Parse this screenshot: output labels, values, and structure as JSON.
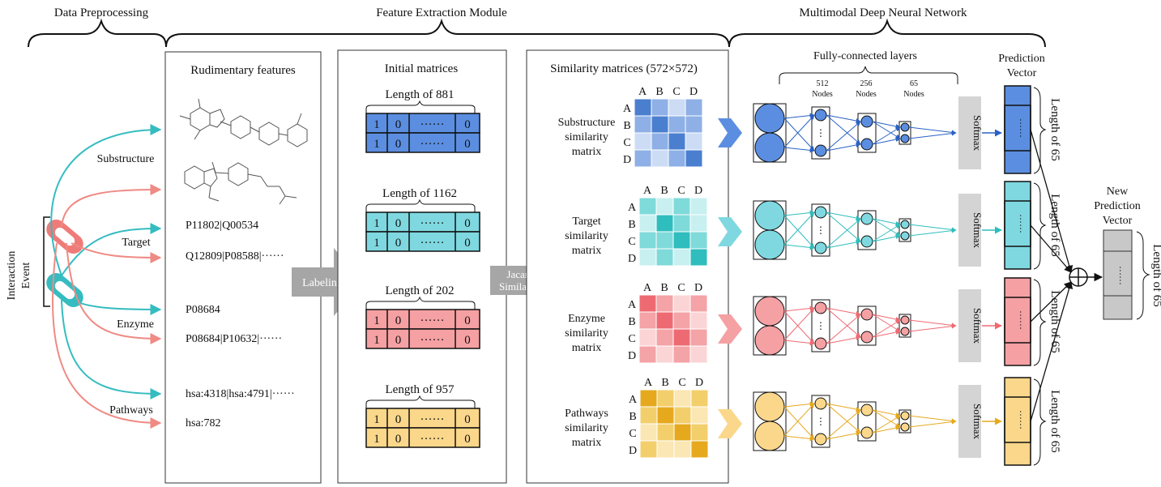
{
  "sections": {
    "data_preprocessing": "Data Preprocessing",
    "feature_extraction": "Feature Extraction Module",
    "multimodal_dnn": "Multimodal Deep Neural Network"
  },
  "interaction_event": [
    "Interaction",
    "Event"
  ],
  "feature_types": [
    "Substructure",
    "Target",
    "Enzyme",
    "Pathways"
  ],
  "rudimentary": {
    "title": "Rudimentary features",
    "target_lines": [
      "P11802|Q00534",
      "Q12809|P08588|······"
    ],
    "enzyme_lines": [
      "P08684",
      "P08684|P10632|······"
    ],
    "pathway_lines": [
      "hsa:4318|hsa:4791|······",
      "hsa:782"
    ]
  },
  "arrows": {
    "labeling": "Labeling",
    "jacard": [
      "Jacard",
      "Similarity"
    ]
  },
  "initial_matrices": {
    "title": "Initial matrices",
    "lengths": [
      "Length of 881",
      "Length of 1162",
      "Length of 202",
      "Length of 957"
    ],
    "cells": [
      "1",
      "0",
      "······",
      "0"
    ]
  },
  "similarity": {
    "title": "Similarity matrices (572×572)",
    "col_labels": [
      "A",
      "B",
      "C",
      "D"
    ],
    "row_labels": [
      "A",
      "B",
      "C",
      "D"
    ],
    "matrix_labels": [
      [
        "Substructure",
        "similarity",
        "matrix"
      ],
      [
        "Target",
        "similarity",
        "matrix"
      ],
      [
        "Enzyme",
        "similarity",
        "matrix"
      ],
      [
        "Pathways",
        "similarity",
        "matrix"
      ]
    ]
  },
  "dnn": {
    "fc_title": "Fully-connected layers",
    "layers": [
      {
        "count": "512",
        "unit": "Nodes"
      },
      {
        "count": "256",
        "unit": "Nodes"
      },
      {
        "count": "65",
        "unit": "Nodes"
      }
    ],
    "softmax": "Softmax",
    "prediction_title": [
      "Prediction",
      "Vector"
    ],
    "vector_length": "Length of 65",
    "new_prediction_title": [
      "New",
      "Prediction",
      "Vector"
    ],
    "new_vector_length": "Length of 65",
    "vector_dots": "······"
  },
  "colors": {
    "substructure": {
      "dark": "#4a7fd0",
      "mid": "#8eb0e6",
      "light": "#cddcf5",
      "fill": "#5b8ee0"
    },
    "target": {
      "dark": "#2fbdbd",
      "mid": "#7fdada",
      "light": "#c8f0f0",
      "fill": "#7fd8e0"
    },
    "enzyme": {
      "dark": "#ee6a72",
      "mid": "#f4a3a7",
      "light": "#fbd5d6",
      "fill": "#f5a0a3"
    },
    "pathways": {
      "dark": "#e6a91e",
      "mid": "#f3cf6c",
      "light": "#fbe7b3",
      "fill": "#fad78a"
    },
    "teal_arrow": "#35bcc0",
    "pink_arrow": "#ef8a84",
    "gray_arrow": "#a6a6a6"
  }
}
